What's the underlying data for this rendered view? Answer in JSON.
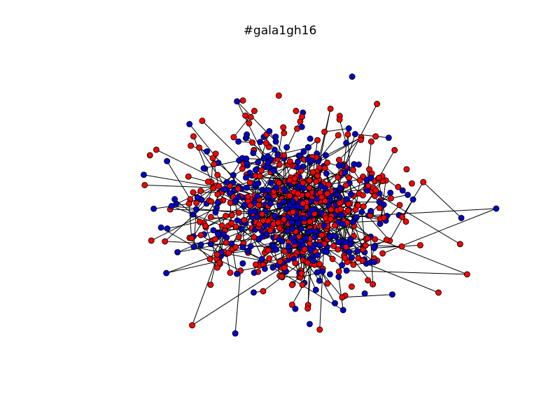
{
  "figure": {
    "title": "#gala1gh16"
  },
  "graph": {
    "type": "network",
    "node_colors": {
      "red": "#ff0000",
      "blue": "#0000cc"
    },
    "node_outline": "#000000",
    "edge_color": "#000000"
  }
}
